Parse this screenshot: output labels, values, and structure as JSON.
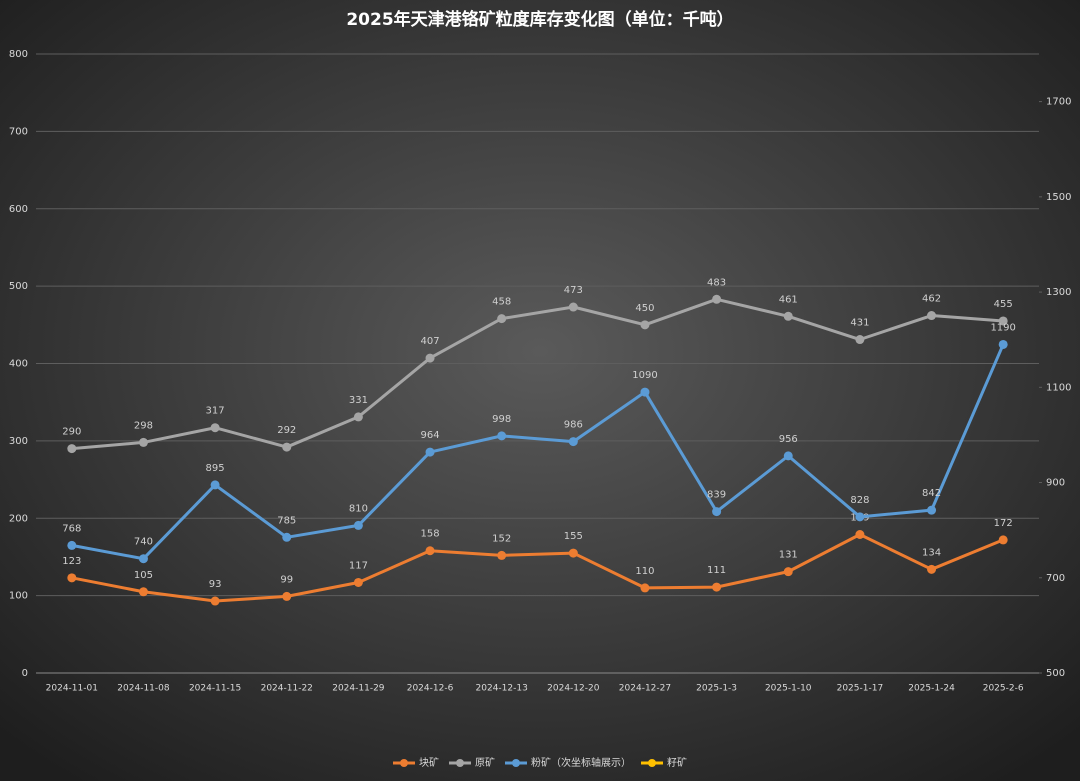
{
  "chart_data": {
    "type": "line",
    "title": "2025年天津港铬矿粒度库存变化图（单位：千吨）",
    "categories": [
      "2024-11-01",
      "2024-11-08",
      "2024-11-15",
      "2024-11-22",
      "2024-11-29",
      "2024-12-6",
      "2024-12-13",
      "2024-12-20",
      "2024-12-27",
      "2025-1-3",
      "2025-1-10",
      "2025-1-17",
      "2025-1-24",
      "2025-2-6"
    ],
    "series": [
      {
        "name": "块矿",
        "color": "#ed7d31",
        "values": [
          123,
          105,
          93,
          99,
          117,
          158,
          152,
          155,
          110,
          111,
          131,
          179,
          134,
          172
        ]
      },
      {
        "name": "原矿",
        "color": "#a5a5a5",
        "values": [
          290,
          298,
          317,
          292,
          331,
          407,
          458,
          473,
          450,
          483,
          461,
          431,
          462,
          455
        ]
      },
      {
        "name": "粉矿（次坐标轴展示）",
        "color": "#5b9bd5",
        "axis": "y2",
        "values": [
          768,
          740,
          895,
          785,
          810,
          964,
          998,
          986,
          1090,
          839,
          956,
          828,
          842,
          1190
        ]
      },
      {
        "name": "籽矿",
        "color": "#ffc000",
        "values": [
          null,
          null,
          null,
          null,
          null,
          null,
          null,
          null,
          null,
          null,
          null,
          null,
          null,
          null
        ]
      }
    ],
    "ylim": [
      0,
      800
    ],
    "yticks": [
      0,
      100,
      200,
      300,
      400,
      500,
      600,
      700,
      800
    ],
    "y2lim": [
      500,
      1800
    ],
    "y2ticks": [
      500,
      700,
      900,
      1100,
      1300,
      1500,
      1700
    ],
    "grid": true,
    "legend": "bottom"
  }
}
